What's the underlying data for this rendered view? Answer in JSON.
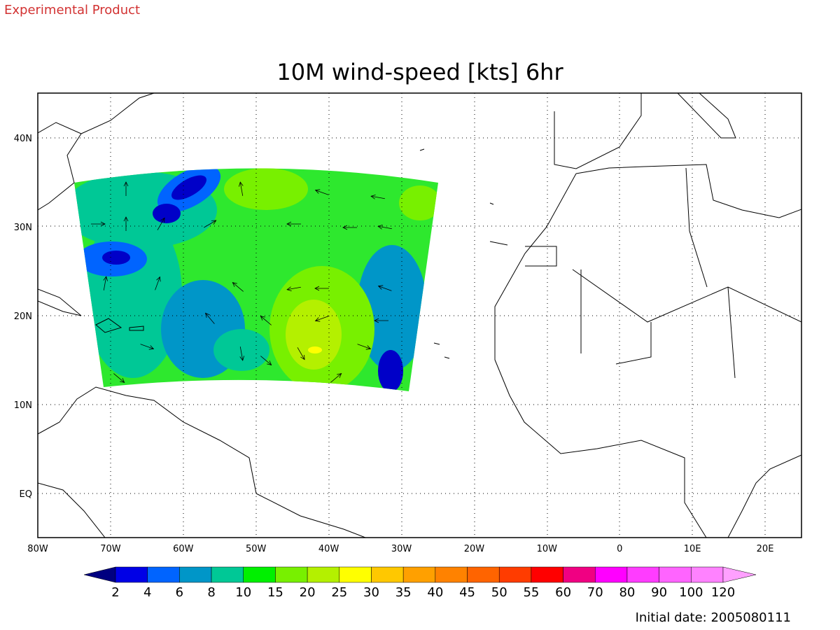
{
  "header": {
    "label": "Experimental Product"
  },
  "title": "10M wind-speed [kts] 6hr",
  "map": {
    "x_labels": [
      "80W",
      "70W",
      "60W",
      "50W",
      "40W",
      "30W",
      "20W",
      "10W",
      "0",
      "10E",
      "20E"
    ],
    "y_labels": [
      "40N",
      "30N",
      "20N",
      "10N",
      "EQ"
    ]
  },
  "colorbar": {
    "labels": [
      2,
      4,
      6,
      8,
      10,
      15,
      20,
      25,
      30,
      35,
      40,
      45,
      50,
      55,
      60,
      70,
      80,
      90,
      100,
      120
    ],
    "colors": [
      "#000080",
      "#0000e6",
      "#0064ff",
      "#0096c8",
      "#00c896",
      "#00f000",
      "#78f000",
      "#b4f000",
      "#ffff00",
      "#ffc800",
      "#ffa000",
      "#ff8200",
      "#ff6400",
      "#ff3c00",
      "#ff0000",
      "#f00082",
      "#ff00ff",
      "#ff3cff",
      "#ff64ff",
      "#ff82ff",
      "#ffa0ff"
    ]
  },
  "footer": "Initial date: 2005080111"
}
